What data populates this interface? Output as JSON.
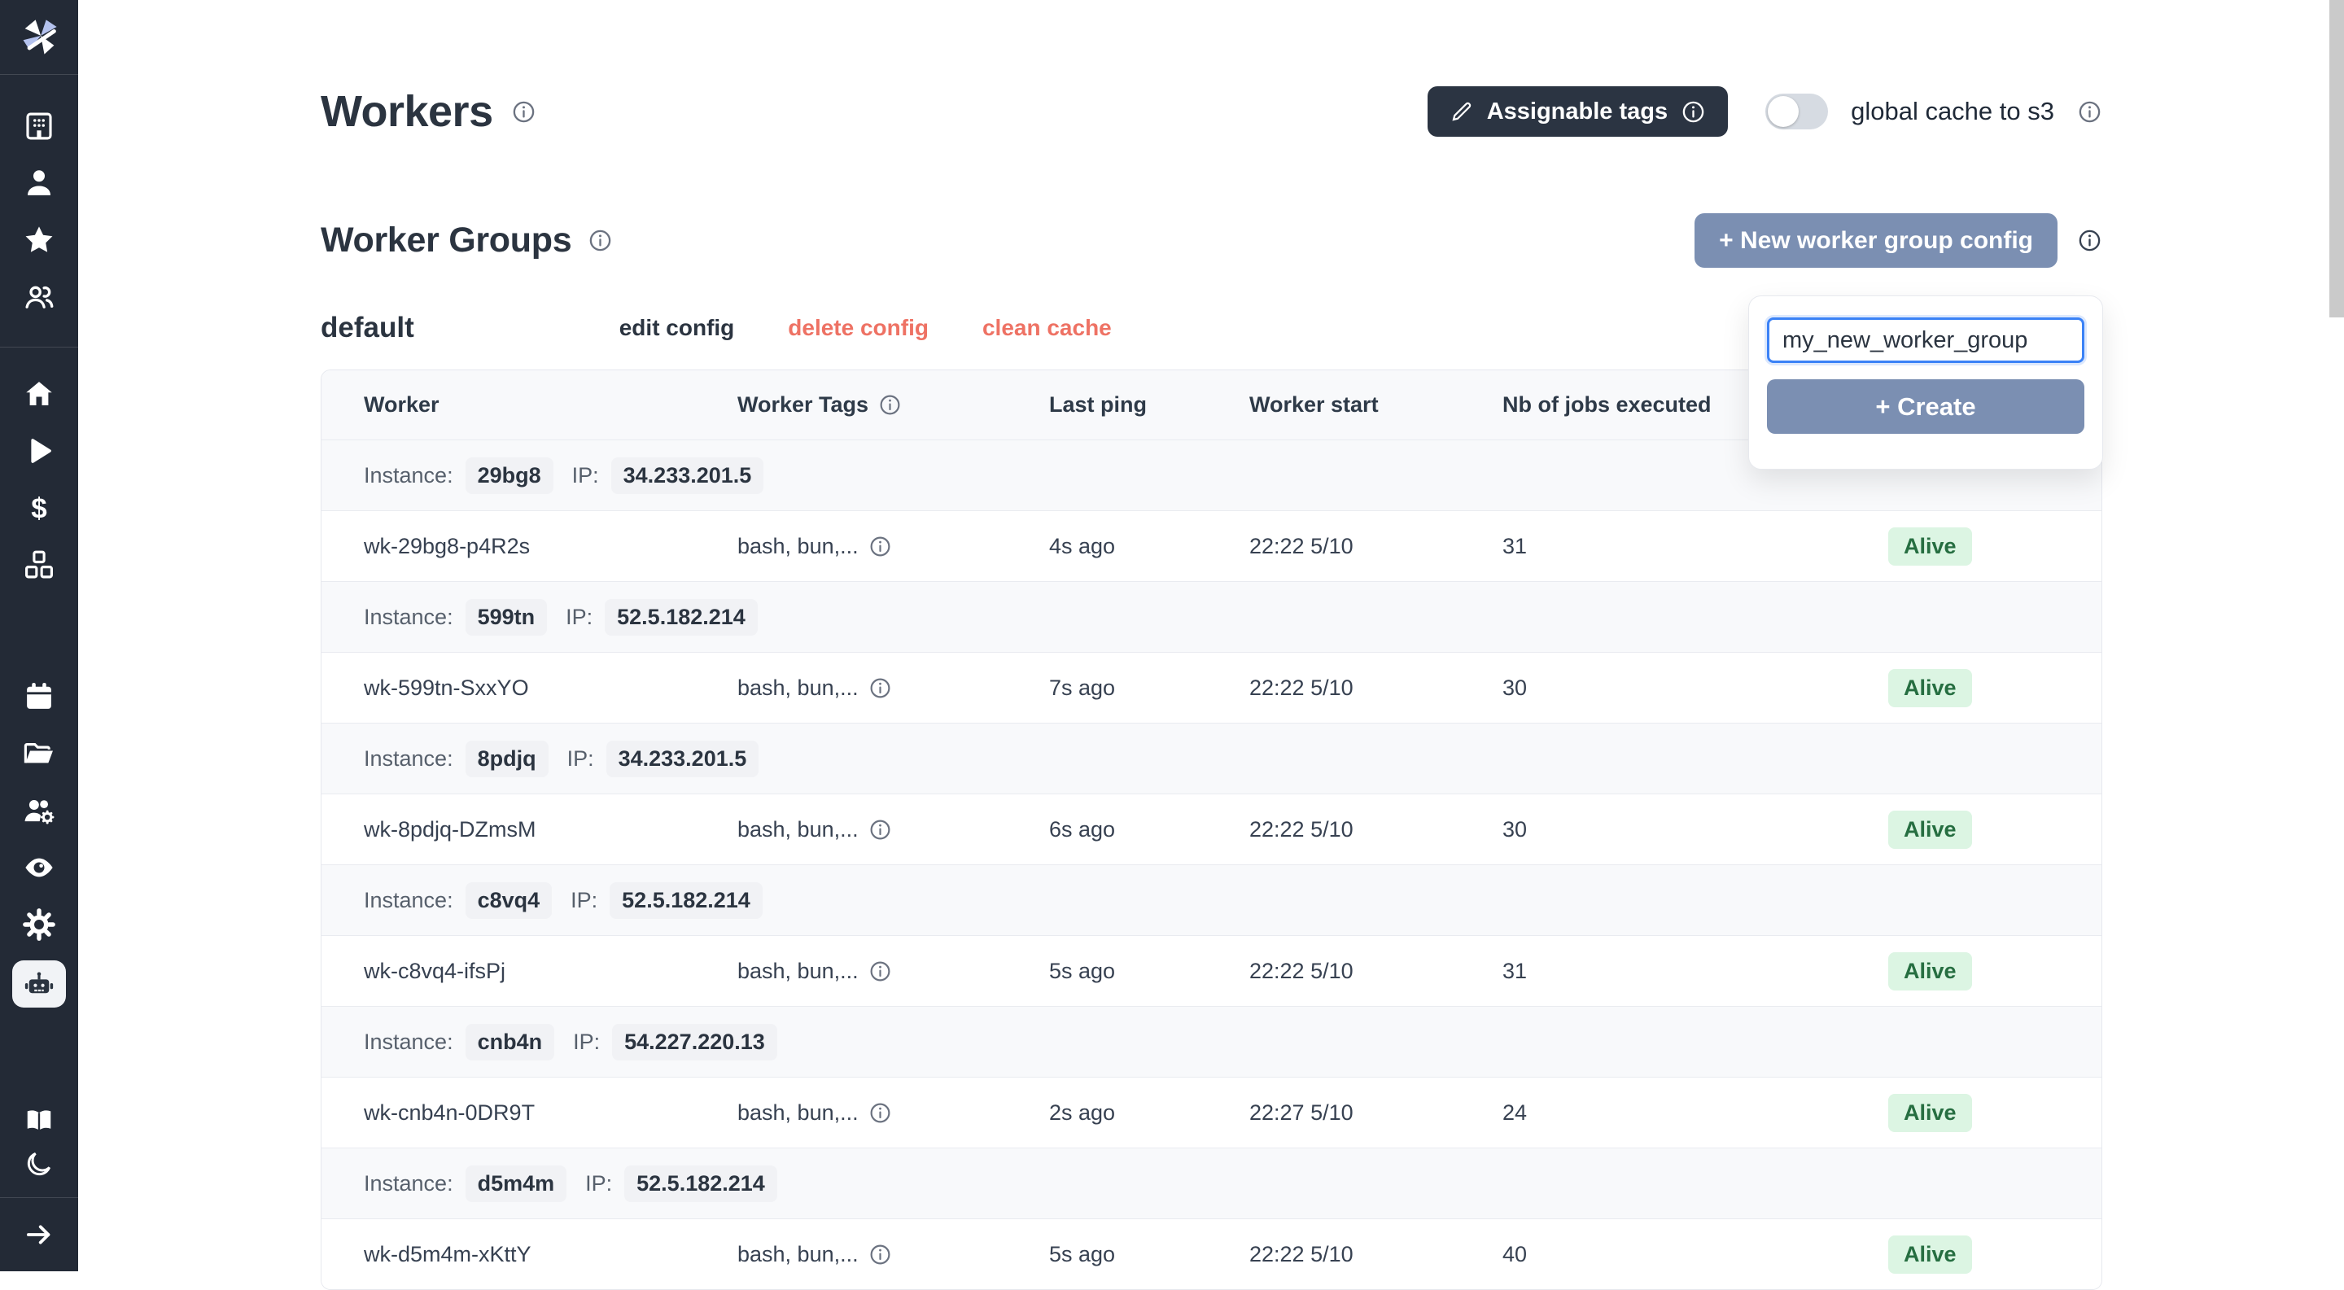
{
  "app": {
    "name": "Windmill"
  },
  "colors": {
    "accent": "#7b8fb2",
    "danger": "#ee7264",
    "sidebar": "#232a36",
    "dark-button": "#2b3442",
    "alive-bg": "#dcf5e3",
    "alive-text": "#266e41",
    "focus": "#3b82f6"
  },
  "sidebar": {
    "active_item": "workers",
    "items": [
      {
        "icon": "building-icon"
      },
      {
        "icon": "user-icon"
      },
      {
        "icon": "star-icon"
      },
      {
        "icon": "users-icon"
      },
      {
        "icon": "home-icon"
      },
      {
        "icon": "play-icon"
      },
      {
        "icon": "dollar-icon"
      },
      {
        "icon": "cubes-icon"
      },
      {
        "icon": "calendar-icon"
      },
      {
        "icon": "folder-icon"
      },
      {
        "icon": "users-gear-icon"
      },
      {
        "icon": "eye-icon"
      },
      {
        "icon": "gear-icon"
      },
      {
        "icon": "robot-icon",
        "active": true
      },
      {
        "icon": "book-icon"
      },
      {
        "icon": "moon-icon"
      },
      {
        "icon": "arrow-right-icon"
      }
    ]
  },
  "header": {
    "title": "Workers"
  },
  "controls": {
    "assignable_tags_label": "Assignable tags",
    "global_cache_label": "global cache to s3",
    "global_cache_enabled": false
  },
  "worker_groups": {
    "title": "Worker Groups",
    "new_config_button": "+ New worker group config"
  },
  "new_group_popup": {
    "input_value": "my_new_worker_group",
    "create_button": "+ Create"
  },
  "group": {
    "name": "default",
    "edit_label": "edit config",
    "delete_label": "delete config",
    "clean_label": "clean cache"
  },
  "table": {
    "headers": [
      "Worker",
      "Worker Tags",
      "Last ping",
      "Worker start",
      "Nb of jobs executed"
    ],
    "instance_label": "Instance:",
    "ip_label": "IP:",
    "rows": [
      {
        "instance": {
          "id": "29bg8",
          "ip": "34.233.201.5"
        },
        "worker": {
          "name": "wk-29bg8-p4R2s",
          "tags": "bash, bun,...",
          "last_ping": "4s ago",
          "start": "22:22 5/10",
          "jobs": "31",
          "status": "Alive"
        }
      },
      {
        "instance": {
          "id": "599tn",
          "ip": "52.5.182.214"
        },
        "worker": {
          "name": "wk-599tn-SxxYO",
          "tags": "bash, bun,...",
          "last_ping": "7s ago",
          "start": "22:22 5/10",
          "jobs": "30",
          "status": "Alive"
        }
      },
      {
        "instance": {
          "id": "8pdjq",
          "ip": "34.233.201.5"
        },
        "worker": {
          "name": "wk-8pdjq-DZmsM",
          "tags": "bash, bun,...",
          "last_ping": "6s ago",
          "start": "22:22 5/10",
          "jobs": "30",
          "status": "Alive"
        }
      },
      {
        "instance": {
          "id": "c8vq4",
          "ip": "52.5.182.214"
        },
        "worker": {
          "name": "wk-c8vq4-ifsPj",
          "tags": "bash, bun,...",
          "last_ping": "5s ago",
          "start": "22:22 5/10",
          "jobs": "31",
          "status": "Alive"
        }
      },
      {
        "instance": {
          "id": "cnb4n",
          "ip": "54.227.220.13"
        },
        "worker": {
          "name": "wk-cnb4n-0DR9T",
          "tags": "bash, bun,...",
          "last_ping": "2s ago",
          "start": "22:27 5/10",
          "jobs": "24",
          "status": "Alive"
        }
      },
      {
        "instance": {
          "id": "d5m4m",
          "ip": "52.5.182.214"
        },
        "worker": {
          "name": "wk-d5m4m-xKttY",
          "tags": "bash, bun,...",
          "last_ping": "5s ago",
          "start": "22:22 5/10",
          "jobs": "40",
          "status": "Alive"
        }
      }
    ]
  }
}
